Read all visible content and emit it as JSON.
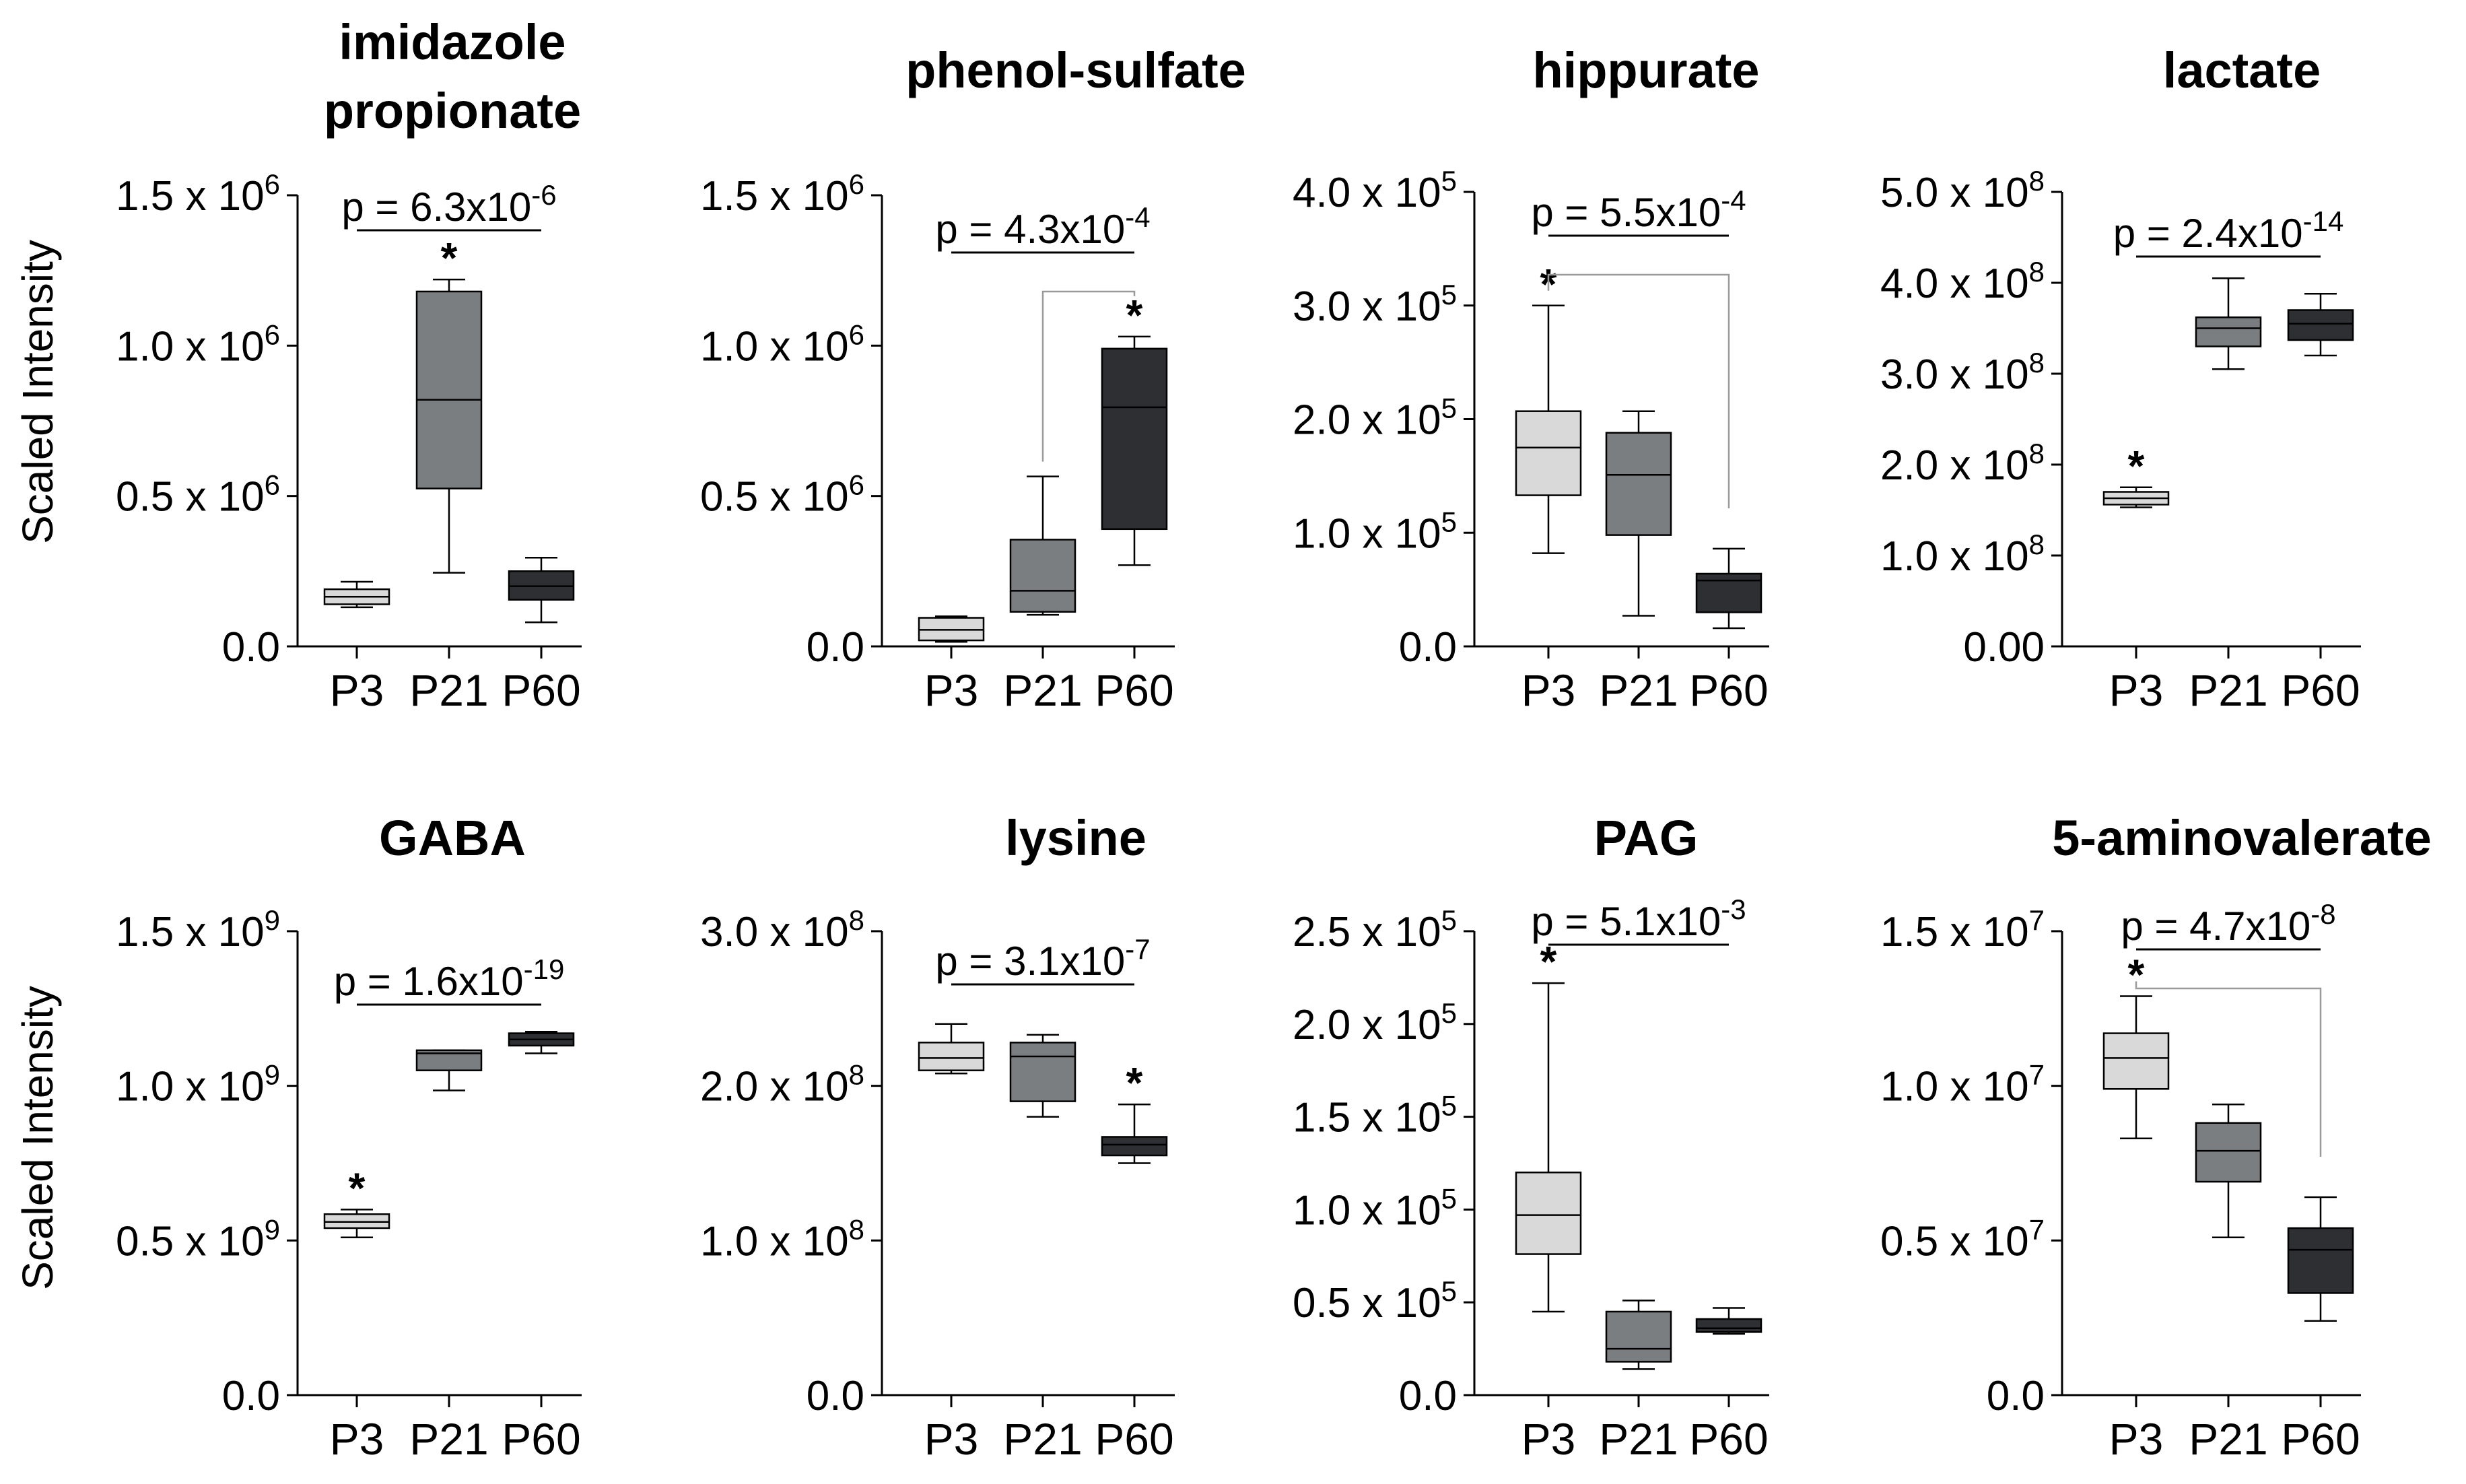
{
  "figure": {
    "y_axis_label": "Scaled Intensity",
    "colors": {
      "P3": "#d9d9d9",
      "P21": "#7b7e80",
      "P60": "#2d2f33"
    }
  },
  "chart_data": [
    {
      "type": "box",
      "title_lines": [
        "imidazole",
        "propionate"
      ],
      "categories": [
        "P3",
        "P21",
        "P60"
      ],
      "ylabel": "Scaled Intensity",
      "ylim": [
        0,
        1500000.0
      ],
      "y_ticks": [
        {
          "value": 0,
          "base": "0.0",
          "exp": ""
        },
        {
          "value": 500000,
          "base": "0.5 x 10",
          "exp": "6"
        },
        {
          "value": 1000000,
          "base": "1.0 x 10",
          "exp": "6"
        },
        {
          "value": 1500000,
          "base": "1.5 x 10",
          "exp": "6"
        }
      ],
      "series": [
        {
          "name": "P3",
          "min": 130000,
          "q1": 140000,
          "median": 165000,
          "q3": 190000,
          "max": 215000,
          "color": "#d9d9d9"
        },
        {
          "name": "P21",
          "min": 245000,
          "q1": 525000,
          "median": 820000,
          "q3": 1180000,
          "max": 1220000,
          "color": "#7b7e80"
        },
        {
          "name": "P60",
          "min": 80000,
          "q1": 155000,
          "median": 200000,
          "q3": 250000,
          "max": 295000,
          "color": "#2d2f33"
        }
      ],
      "p_value": {
        "base": "p = 6.3x10",
        "exp": "-6",
        "from": "P3",
        "to": "P60",
        "bracket": false
      },
      "significant": [
        "P21"
      ]
    },
    {
      "type": "box",
      "title_lines": [
        "phenol-sulfate"
      ],
      "categories": [
        "P3",
        "P21",
        "P60"
      ],
      "ylabel": "",
      "ylim": [
        0,
        1500000.0
      ],
      "y_ticks": [
        {
          "value": 0,
          "base": "0.0",
          "exp": ""
        },
        {
          "value": 500000,
          "base": "0.5 x 10",
          "exp": "6"
        },
        {
          "value": 1000000,
          "base": "1.0 x 10",
          "exp": "6"
        },
        {
          "value": 1500000,
          "base": "1.5 x 10",
          "exp": "6"
        }
      ],
      "series": [
        {
          "name": "P3",
          "min": 15000,
          "q1": 20000,
          "median": 55000,
          "q3": 95000,
          "max": 100000,
          "color": "#d9d9d9"
        },
        {
          "name": "P21",
          "min": 105000,
          "q1": 115000,
          "median": 185000,
          "q3": 355000,
          "max": 565000,
          "color": "#7b7e80"
        },
        {
          "name": "P60",
          "min": 270000,
          "q1": 390000,
          "median": 795000,
          "q3": 990000,
          "max": 1030000,
          "color": "#2d2f33"
        }
      ],
      "p_value": {
        "base": "p = 4.3x10",
        "exp": "-4",
        "from": "P21",
        "to": "P60",
        "bracket": true
      },
      "significant": [
        "P60"
      ]
    },
    {
      "type": "box",
      "title_lines": [
        "hippurate"
      ],
      "categories": [
        "P3",
        "P21",
        "P60"
      ],
      "ylabel": "",
      "ylim": [
        0,
        400000.0
      ],
      "y_ticks": [
        {
          "value": 0,
          "base": "0.0",
          "exp": ""
        },
        {
          "value": 100000,
          "base": "1.0 x 10",
          "exp": "5"
        },
        {
          "value": 200000,
          "base": "2.0 x 10",
          "exp": "5"
        },
        {
          "value": 300000,
          "base": "3.0 x 10",
          "exp": "5"
        },
        {
          "value": 400000,
          "base": "4.0 x 10",
          "exp": "5"
        }
      ],
      "series": [
        {
          "name": "P3",
          "min": 82000,
          "q1": 133000,
          "median": 175000,
          "q3": 207000,
          "max": 300000,
          "color": "#d9d9d9"
        },
        {
          "name": "P21",
          "min": 27000,
          "q1": 98000,
          "median": 151000,
          "q3": 188000,
          "max": 207000,
          "color": "#7b7e80"
        },
        {
          "name": "P60",
          "min": 16000,
          "q1": 30000,
          "median": 58000,
          "q3": 64000,
          "max": 86000,
          "color": "#2d2f33"
        }
      ],
      "p_value": {
        "base": "p = 5.5x10",
        "exp": "-4",
        "from": "P3",
        "to": "P60",
        "bracket": true
      },
      "significant": [
        "P3"
      ]
    },
    {
      "type": "box",
      "title_lines": [
        "lactate"
      ],
      "categories": [
        "P3",
        "P21",
        "P60"
      ],
      "ylabel": "",
      "ylim": [
        0,
        500000000.0
      ],
      "y_ticks": [
        {
          "value": 0,
          "base": "0.00",
          "exp": ""
        },
        {
          "value": 100000000,
          "base": "1.0 x 10",
          "exp": "8"
        },
        {
          "value": 200000000,
          "base": "2.0 x 10",
          "exp": "8"
        },
        {
          "value": 300000000,
          "base": "3.0 x 10",
          "exp": "8"
        },
        {
          "value": 400000000,
          "base": "4.0 x 10",
          "exp": "8"
        },
        {
          "value": 500000000,
          "base": "5.0 x 10",
          "exp": "8"
        }
      ],
      "series": [
        {
          "name": "P3",
          "min": 153000000,
          "q1": 156000000,
          "median": 163000000,
          "q3": 170000000,
          "max": 175000000,
          "color": "#d9d9d9"
        },
        {
          "name": "P21",
          "min": 305000000,
          "q1": 330000000,
          "median": 350000000,
          "q3": 362000000,
          "max": 405000000,
          "color": "#7b7e80"
        },
        {
          "name": "P60",
          "min": 320000000,
          "q1": 337000000,
          "median": 355000000,
          "q3": 370000000,
          "max": 388000000,
          "color": "#2d2f33"
        }
      ],
      "p_value": {
        "base": "p = 2.4x10",
        "exp": "-14",
        "from": "P3",
        "to": "P60",
        "bracket": false
      },
      "significant": [
        "P3"
      ]
    },
    {
      "type": "box",
      "title_lines": [
        "GABA"
      ],
      "categories": [
        "P3",
        "P21",
        "P60"
      ],
      "ylabel": "Scaled Intensity",
      "ylim": [
        0,
        1500000000.0
      ],
      "y_ticks": [
        {
          "value": 0,
          "base": "0.0",
          "exp": ""
        },
        {
          "value": 500000000,
          "base": "0.5 x 10",
          "exp": "9"
        },
        {
          "value": 1000000000,
          "base": "1.0 x 10",
          "exp": "9"
        },
        {
          "value": 1500000000,
          "base": "1.5 x 10",
          "exp": "9"
        }
      ],
      "series": [
        {
          "name": "P3",
          "min": 510000000,
          "q1": 540000000,
          "median": 560000000,
          "q3": 585000000,
          "max": 600000000,
          "color": "#d9d9d9"
        },
        {
          "name": "P21",
          "min": 985000000,
          "q1": 1050000000,
          "median": 1105000000,
          "q3": 1115000000,
          "max": 1115000000,
          "color": "#7b7e80"
        },
        {
          "name": "P60",
          "min": 1105000000,
          "q1": 1130000000,
          "median": 1150000000,
          "q3": 1170000000,
          "max": 1175000000,
          "color": "#2d2f33"
        }
      ],
      "p_value": {
        "base": "p = 1.6x10",
        "exp": "-19",
        "from": "P3",
        "to": "P60",
        "bracket": false
      },
      "significant": [
        "P3"
      ]
    },
    {
      "type": "box",
      "title_lines": [
        "lysine"
      ],
      "categories": [
        "P3",
        "P21",
        "P60"
      ],
      "ylabel": "",
      "ylim": [
        0,
        300000000.0
      ],
      "y_ticks": [
        {
          "value": 0,
          "base": "0.0",
          "exp": ""
        },
        {
          "value": 100000000,
          "base": "1.0 x 10",
          "exp": "8"
        },
        {
          "value": 200000000,
          "base": "2.0 x 10",
          "exp": "8"
        },
        {
          "value": 300000000,
          "base": "3.0 x 10",
          "exp": "8"
        }
      ],
      "series": [
        {
          "name": "P3",
          "min": 208000000,
          "q1": 210000000,
          "median": 218000000,
          "q3": 228000000,
          "max": 240000000,
          "color": "#d9d9d9"
        },
        {
          "name": "P21",
          "min": 180000000,
          "q1": 190000000,
          "median": 219000000,
          "q3": 228000000,
          "max": 233000000,
          "color": "#7b7e80"
        },
        {
          "name": "P60",
          "min": 150000000,
          "q1": 155000000,
          "median": 162000000,
          "q3": 167000000,
          "max": 188000000,
          "color": "#2d2f33"
        }
      ],
      "p_value": {
        "base": "p = 3.1x10",
        "exp": "-7",
        "from": "P3",
        "to": "P60",
        "bracket": false
      },
      "significant": [
        "P60"
      ]
    },
    {
      "type": "box",
      "title_lines": [
        "PAG"
      ],
      "categories": [
        "P3",
        "P21",
        "P60"
      ],
      "ylabel": "",
      "ylim": [
        0,
        250000.0
      ],
      "y_ticks": [
        {
          "value": 0,
          "base": "0.0",
          "exp": ""
        },
        {
          "value": 50000,
          "base": "0.5 x 10",
          "exp": "5"
        },
        {
          "value": 100000,
          "base": "1.0 x 10",
          "exp": "5"
        },
        {
          "value": 150000,
          "base": "1.5 x 10",
          "exp": "5"
        },
        {
          "value": 200000,
          "base": "2.0 x 10",
          "exp": "5"
        },
        {
          "value": 250000,
          "base": "2.5 x 10",
          "exp": "5"
        }
      ],
      "series": [
        {
          "name": "P3",
          "min": 45000,
          "q1": 76000,
          "median": 97000,
          "q3": 120000,
          "max": 222000,
          "color": "#d9d9d9"
        },
        {
          "name": "P21",
          "min": 14000,
          "q1": 18000,
          "median": 25000,
          "q3": 45000,
          "max": 51000,
          "color": "#7b7e80"
        },
        {
          "name": "P60",
          "min": 33000,
          "q1": 34000,
          "median": 36000,
          "q3": 41000,
          "max": 47000,
          "color": "#2d2f33"
        }
      ],
      "p_value": {
        "base": "p = 5.1x10",
        "exp": "-3",
        "from": "P3",
        "to": "P60",
        "bracket": false
      },
      "significant": [
        "P3"
      ]
    },
    {
      "type": "box",
      "title_lines": [
        "5-aminovalerate"
      ],
      "categories": [
        "P3",
        "P21",
        "P60"
      ],
      "ylabel": "",
      "ylim": [
        0,
        15000000.0
      ],
      "y_ticks": [
        {
          "value": 0,
          "base": "0.0",
          "exp": ""
        },
        {
          "value": 5000000,
          "base": "0.5 x 10",
          "exp": "7"
        },
        {
          "value": 10000000,
          "base": "1.0 x 10",
          "exp": "7"
        },
        {
          "value": 15000000,
          "base": "1.5 x 10",
          "exp": "7"
        }
      ],
      "series": [
        {
          "name": "P3",
          "min": 8300000,
          "q1": 9900000,
          "median": 10900000,
          "q3": 11700000,
          "max": 12900000,
          "color": "#d9d9d9"
        },
        {
          "name": "P21",
          "min": 5100000,
          "q1": 6900000,
          "median": 7900000,
          "q3": 8800000,
          "max": 9400000,
          "color": "#7b7e80"
        },
        {
          "name": "P60",
          "min": 2400000,
          "q1": 3300000,
          "median": 4700000,
          "q3": 5400000,
          "max": 6400000,
          "color": "#2d2f33"
        }
      ],
      "p_value": {
        "base": "p = 4.7x10",
        "exp": "-8",
        "from": "P3",
        "to": "P60",
        "bracket": true
      },
      "significant": [
        "P3"
      ]
    }
  ]
}
